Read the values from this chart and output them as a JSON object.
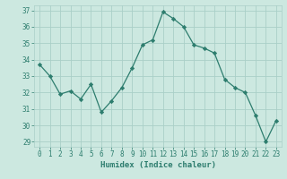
{
  "x": [
    0,
    1,
    2,
    3,
    4,
    5,
    6,
    7,
    8,
    9,
    10,
    11,
    12,
    13,
    14,
    15,
    16,
    17,
    18,
    19,
    20,
    21,
    22,
    23
  ],
  "y": [
    33.7,
    33.0,
    31.9,
    32.1,
    31.6,
    32.5,
    30.8,
    31.5,
    32.3,
    33.5,
    34.9,
    35.2,
    36.9,
    36.5,
    36.0,
    34.9,
    34.7,
    34.4,
    32.8,
    32.3,
    32.0,
    30.6,
    29.0,
    30.3
  ],
  "line_color": "#2d7d6e",
  "marker": "D",
  "marker_size": 2.2,
  "bg_color": "#cce8e0",
  "grid_color": "#aacfc8",
  "xlabel": "Humidex (Indice chaleur)",
  "ylim": [
    28.7,
    37.3
  ],
  "xlim": [
    -0.5,
    23.5
  ],
  "yticks": [
    29,
    30,
    31,
    32,
    33,
    34,
    35,
    36,
    37
  ],
  "xticks": [
    0,
    1,
    2,
    3,
    4,
    5,
    6,
    7,
    8,
    9,
    10,
    11,
    12,
    13,
    14,
    15,
    16,
    17,
    18,
    19,
    20,
    21,
    22,
    23
  ],
  "tick_fontsize": 5.5,
  "label_fontsize": 6.5,
  "linewidth": 0.9
}
